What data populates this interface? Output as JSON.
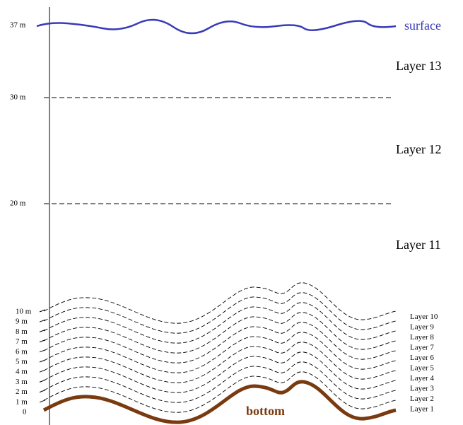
{
  "surface": "surface",
  "bottom": "bottom",
  "depth_labels": [
    "0",
    "1 m",
    "2 m",
    "3 m",
    "4 m",
    "5 m",
    "6 m",
    "7 m",
    "8 m",
    "9 m",
    "10 m"
  ],
  "upper_depth_labels": [
    "20 m",
    "30 m",
    "37 m"
  ],
  "layers": [
    "Layer 1",
    "Layer 2",
    "Layer 3",
    "Layer 4",
    "Layer 5",
    "Layer 6",
    "Layer 7",
    "Layer 8",
    "Layer 9",
    "Layer 10"
  ],
  "upper_layers": [
    "Layer 11",
    "Layer 12",
    "Layer 13"
  ]
}
